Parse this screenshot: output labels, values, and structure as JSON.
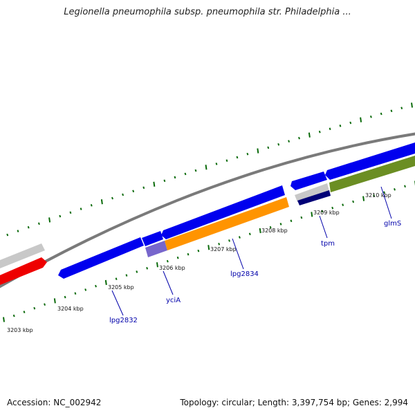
{
  "title": "Legionella pneumophila subsp. pneumophila str. Philadelphia ...",
  "footer": {
    "accession": "Accession: NC_002942",
    "summary": "Topology: circular; Length: 3,397,754 bp; Genes: 2,994"
  },
  "colors": {
    "tick": "#0a6a0a",
    "backbone": "#7a7a7a",
    "gene_blue": "#0000ee",
    "gene_orange": "#ff9400",
    "gene_olive": "#6b8e23",
    "gene_red": "#ee0000",
    "gene_gray": "#c8c8c8",
    "gene_lavender": "#7766cc",
    "gene_navy": "#000077",
    "label_text": "#0000aa"
  },
  "ruler": [
    {
      "label": "3203 kbp"
    },
    {
      "label": "3204 kbp"
    },
    {
      "label": "3205 kbp"
    },
    {
      "label": "3206 kbp"
    },
    {
      "label": "3207 kbp"
    },
    {
      "label": "3208 kbp"
    },
    {
      "label": "3209 kbp"
    },
    {
      "label": "3210 kbp"
    }
  ],
  "gene_labels": [
    {
      "name": "lpg2832"
    },
    {
      "name": "yciA"
    },
    {
      "name": "lpg2834"
    },
    {
      "name": "tpm"
    },
    {
      "name": "glmS"
    }
  ]
}
